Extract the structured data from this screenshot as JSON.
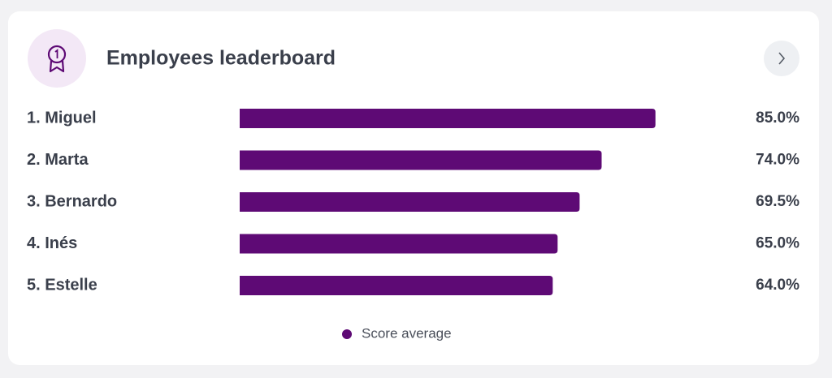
{
  "chart_data": {
    "type": "bar",
    "orientation": "horizontal",
    "title": "Employees leaderboard",
    "categories": [
      "1. Miguel",
      "2. Marta",
      "3. Bernardo",
      "4. Inés",
      "5. Estelle"
    ],
    "series": [
      {
        "name": "Score average",
        "color": "#5e0a75",
        "values": [
          85,
          74,
          69.5,
          65,
          64
        ],
        "value_labels": [
          "85.0%",
          "74.0%",
          "69.5%",
          "65.0%",
          "64.0%"
        ]
      }
    ],
    "xlim": [
      0,
      100
    ]
  }
}
